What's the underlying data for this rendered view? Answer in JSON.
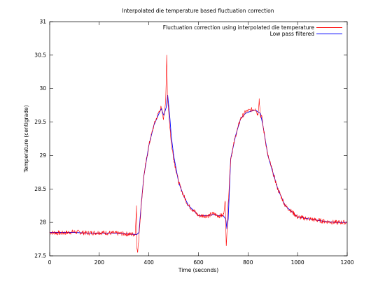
{
  "chart_data": {
    "type": "line",
    "title": "Interpolated die temperature based fluctuation correction",
    "xlabel": "Time (seconds)",
    "ylabel": "Temperature (centigrade)",
    "xlim": [
      0,
      1200
    ],
    "ylim": [
      27.5,
      31
    ],
    "x_ticks": [
      0,
      200,
      400,
      600,
      800,
      1000,
      1200
    ],
    "y_ticks": [
      27.5,
      28,
      28.5,
      29,
      29.5,
      30,
      30.5,
      31
    ],
    "grid": false,
    "legend_position": "top-right",
    "colors": {
      "raw": "#ff0000",
      "filtered": "#0000ff"
    },
    "series": [
      {
        "name": "Fluctuation correction using interpolated die temperature",
        "style": "noisy",
        "x": [
          0,
          50,
          100,
          150,
          200,
          250,
          300,
          345,
          350,
          352,
          355,
          360,
          370,
          380,
          400,
          420,
          440,
          450,
          458,
          462,
          468,
          472,
          475,
          480,
          490,
          500,
          520,
          540,
          560,
          580,
          600,
          620,
          640,
          660,
          680,
          700,
          708,
          712,
          716,
          720,
          730,
          750,
          770,
          790,
          810,
          830,
          840,
          845,
          850,
          855,
          860,
          880,
          900,
          920,
          950,
          1000,
          1050,
          1100,
          1150,
          1200
        ],
        "y": [
          27.85,
          27.84,
          27.86,
          27.84,
          27.85,
          27.84,
          27.83,
          27.82,
          28.25,
          27.6,
          27.55,
          27.8,
          28.3,
          28.7,
          29.15,
          29.45,
          29.65,
          29.72,
          29.55,
          29.6,
          29.85,
          30.5,
          29.85,
          29.65,
          29.2,
          28.95,
          28.6,
          28.4,
          28.25,
          28.18,
          28.1,
          28.1,
          28.1,
          28.13,
          28.1,
          28.1,
          28.32,
          27.65,
          27.95,
          28.3,
          28.95,
          29.3,
          29.55,
          29.65,
          29.68,
          29.7,
          29.6,
          29.85,
          29.58,
          29.6,
          29.45,
          29.0,
          28.75,
          28.5,
          28.25,
          28.08,
          28.05,
          28.02,
          28.0,
          28.0
        ]
      },
      {
        "name": "Low pass filtered",
        "style": "smooth",
        "x": [
          0,
          50,
          100,
          150,
          200,
          250,
          300,
          345,
          352,
          360,
          370,
          380,
          400,
          420,
          440,
          450,
          460,
          470,
          476,
          485,
          490,
          500,
          520,
          540,
          560,
          580,
          600,
          620,
          640,
          660,
          680,
          700,
          710,
          715,
          720,
          730,
          750,
          770,
          790,
          810,
          830,
          840,
          850,
          860,
          880,
          900,
          920,
          950,
          1000,
          1050,
          1100,
          1150,
          1200
        ],
        "y": [
          27.85,
          27.85,
          27.85,
          27.84,
          27.84,
          27.84,
          27.83,
          27.82,
          27.82,
          27.85,
          28.3,
          28.7,
          29.15,
          29.45,
          29.62,
          29.7,
          29.6,
          29.72,
          29.9,
          29.55,
          29.3,
          29.0,
          28.6,
          28.4,
          28.25,
          28.18,
          28.1,
          28.1,
          28.1,
          28.12,
          28.1,
          28.1,
          28.05,
          27.9,
          28.05,
          28.95,
          29.3,
          29.55,
          29.63,
          29.66,
          29.68,
          29.65,
          29.63,
          29.45,
          29.0,
          28.75,
          28.5,
          28.25,
          28.08,
          28.05,
          28.02,
          28.0,
          28.0
        ]
      }
    ]
  }
}
